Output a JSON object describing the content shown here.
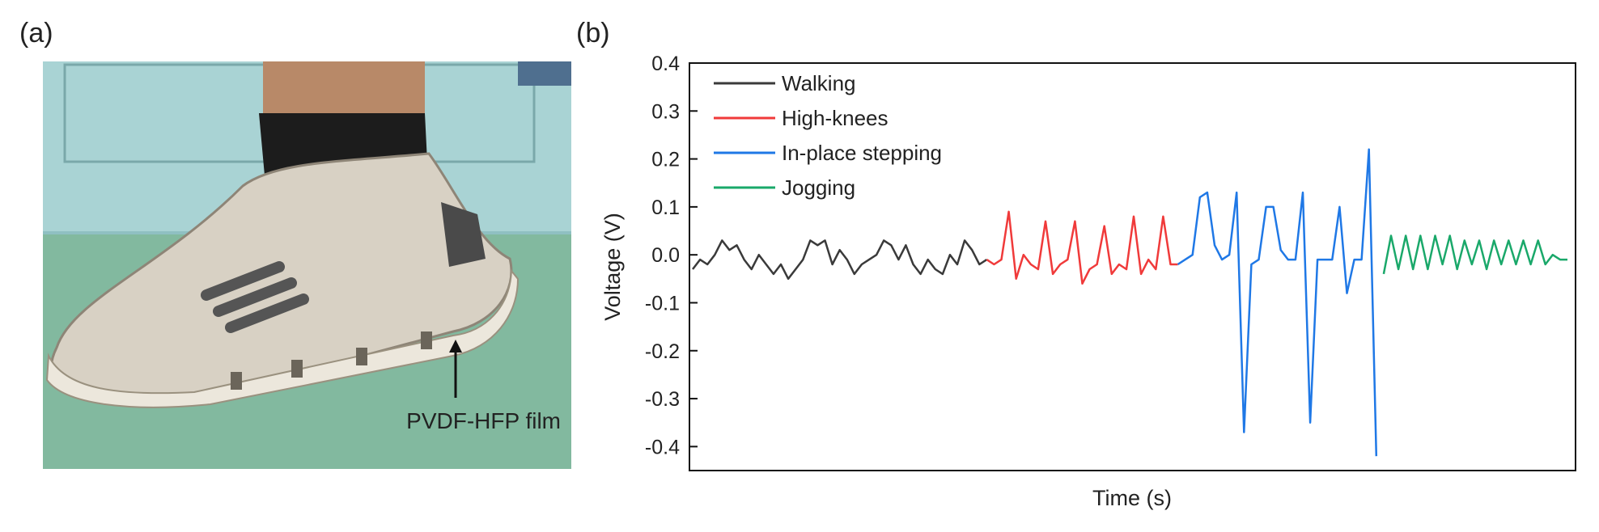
{
  "panels": {
    "a": "(a)",
    "b": "(b)"
  },
  "photo": {
    "annotation": "PVDF-HFP film"
  },
  "chart_data": {
    "type": "line",
    "xlabel": "Time (s)",
    "ylabel": "Voltage (V)",
    "ylim": [
      -0.45,
      0.4
    ],
    "yticks": [
      0.4,
      0.3,
      0.2,
      0.1,
      {
        "value": 0,
        "label": "0.0"
      },
      -0.1,
      -0.2,
      -0.3,
      -0.4
    ],
    "grid": false,
    "legend": "upper left",
    "series": [
      {
        "name": "Walking",
        "color": "#3a3a3a",
        "values": [
          -0.03,
          -0.01,
          -0.02,
          0.0,
          0.03,
          0.01,
          0.02,
          -0.01,
          -0.03,
          0.0,
          -0.02,
          -0.04,
          -0.02,
          -0.05,
          -0.03,
          -0.01,
          0.03,
          0.02,
          0.03,
          -0.02,
          0.01,
          -0.01,
          -0.04,
          -0.02,
          -0.01,
          0.0,
          0.03,
          0.02,
          -0.01,
          0.02,
          -0.02,
          -0.04,
          -0.01,
          -0.03,
          -0.04,
          0.0,
          -0.02,
          0.03,
          0.01,
          -0.02,
          -0.01,
          null,
          null,
          null,
          null,
          null,
          null,
          null,
          null,
          null,
          null,
          null,
          null,
          null,
          null,
          null,
          null,
          null,
          null,
          null,
          null,
          null,
          null,
          null,
          null,
          null,
          null,
          null,
          null,
          null,
          null,
          null,
          null,
          null,
          null,
          null,
          null,
          null,
          null,
          null,
          null,
          null,
          null,
          null,
          null,
          null,
          null,
          null,
          null,
          null,
          null,
          null,
          null,
          null,
          null,
          null,
          null,
          null,
          null,
          null,
          null,
          null,
          null,
          null,
          null,
          null,
          null,
          null,
          null,
          null,
          null,
          null,
          null,
          null,
          null,
          null,
          null,
          null,
          null,
          null
        ]
      },
      {
        "name": "High-knees",
        "color": "#f03a3a",
        "values": [
          null,
          null,
          null,
          null,
          null,
          null,
          null,
          null,
          null,
          null,
          null,
          null,
          null,
          null,
          null,
          null,
          null,
          null,
          null,
          null,
          null,
          null,
          null,
          null,
          null,
          null,
          null,
          null,
          null,
          null,
          null,
          null,
          null,
          null,
          null,
          null,
          null,
          null,
          null,
          null,
          -0.01,
          -0.02,
          -0.01,
          0.09,
          -0.05,
          0.0,
          -0.02,
          -0.03,
          0.07,
          -0.04,
          -0.02,
          -0.01,
          0.07,
          -0.06,
          -0.03,
          -0.02,
          0.06,
          -0.04,
          -0.02,
          -0.03,
          0.08,
          -0.04,
          -0.01,
          -0.03,
          0.08,
          -0.02,
          -0.02,
          null,
          null,
          null,
          null,
          null,
          null,
          null,
          null,
          null,
          null,
          null,
          null,
          null,
          null,
          null,
          null,
          null,
          null,
          null,
          null,
          null,
          null,
          null,
          null,
          null,
          null,
          null,
          null,
          null,
          null,
          null,
          null,
          null,
          null,
          null,
          null,
          null,
          null,
          null,
          null,
          null,
          null,
          null,
          null,
          null,
          null,
          null,
          null,
          null,
          null,
          null,
          null,
          null
        ]
      },
      {
        "name": "In-place stepping",
        "color": "#1f78e6",
        "values": [
          null,
          null,
          null,
          null,
          null,
          null,
          null,
          null,
          null,
          null,
          null,
          null,
          null,
          null,
          null,
          null,
          null,
          null,
          null,
          null,
          null,
          null,
          null,
          null,
          null,
          null,
          null,
          null,
          null,
          null,
          null,
          null,
          null,
          null,
          null,
          null,
          null,
          null,
          null,
          null,
          null,
          null,
          null,
          null,
          null,
          null,
          null,
          null,
          null,
          null,
          null,
          null,
          null,
          null,
          null,
          null,
          null,
          null,
          null,
          null,
          null,
          null,
          null,
          null,
          null,
          null,
          -0.02,
          -0.01,
          0.0,
          0.12,
          0.13,
          0.02,
          -0.01,
          0.0,
          0.13,
          -0.37,
          -0.02,
          -0.01,
          0.1,
          0.1,
          0.01,
          -0.01,
          -0.01,
          0.13,
          -0.35,
          -0.01,
          -0.01,
          -0.01,
          0.1,
          -0.08,
          -0.01,
          -0.01,
          0.22,
          -0.42,
          null,
          null,
          null,
          null,
          null,
          null,
          null,
          null,
          null,
          null,
          null,
          null,
          null,
          null,
          null,
          null,
          null,
          null,
          null,
          null,
          null,
          null,
          null,
          null,
          null,
          null
        ]
      },
      {
        "name": "Jogging",
        "color": "#1aa86a",
        "values": [
          null,
          null,
          null,
          null,
          null,
          null,
          null,
          null,
          null,
          null,
          null,
          null,
          null,
          null,
          null,
          null,
          null,
          null,
          null,
          null,
          null,
          null,
          null,
          null,
          null,
          null,
          null,
          null,
          null,
          null,
          null,
          null,
          null,
          null,
          null,
          null,
          null,
          null,
          null,
          null,
          null,
          null,
          null,
          null,
          null,
          null,
          null,
          null,
          null,
          null,
          null,
          null,
          null,
          null,
          null,
          null,
          null,
          null,
          null,
          null,
          null,
          null,
          null,
          null,
          null,
          null,
          null,
          null,
          null,
          null,
          null,
          null,
          null,
          null,
          null,
          null,
          null,
          null,
          null,
          null,
          null,
          null,
          null,
          null,
          null,
          null,
          null,
          null,
          null,
          null,
          null,
          null,
          null,
          null,
          -0.04,
          0.04,
          -0.03,
          0.04,
          -0.03,
          0.04,
          -0.03,
          0.04,
          -0.02,
          0.04,
          -0.03,
          0.03,
          -0.02,
          0.03,
          -0.03,
          0.03,
          -0.02,
          0.03,
          -0.02,
          0.03,
          -0.02,
          0.03,
          -0.02,
          0.0,
          -0.01,
          -0.01
        ]
      }
    ]
  }
}
